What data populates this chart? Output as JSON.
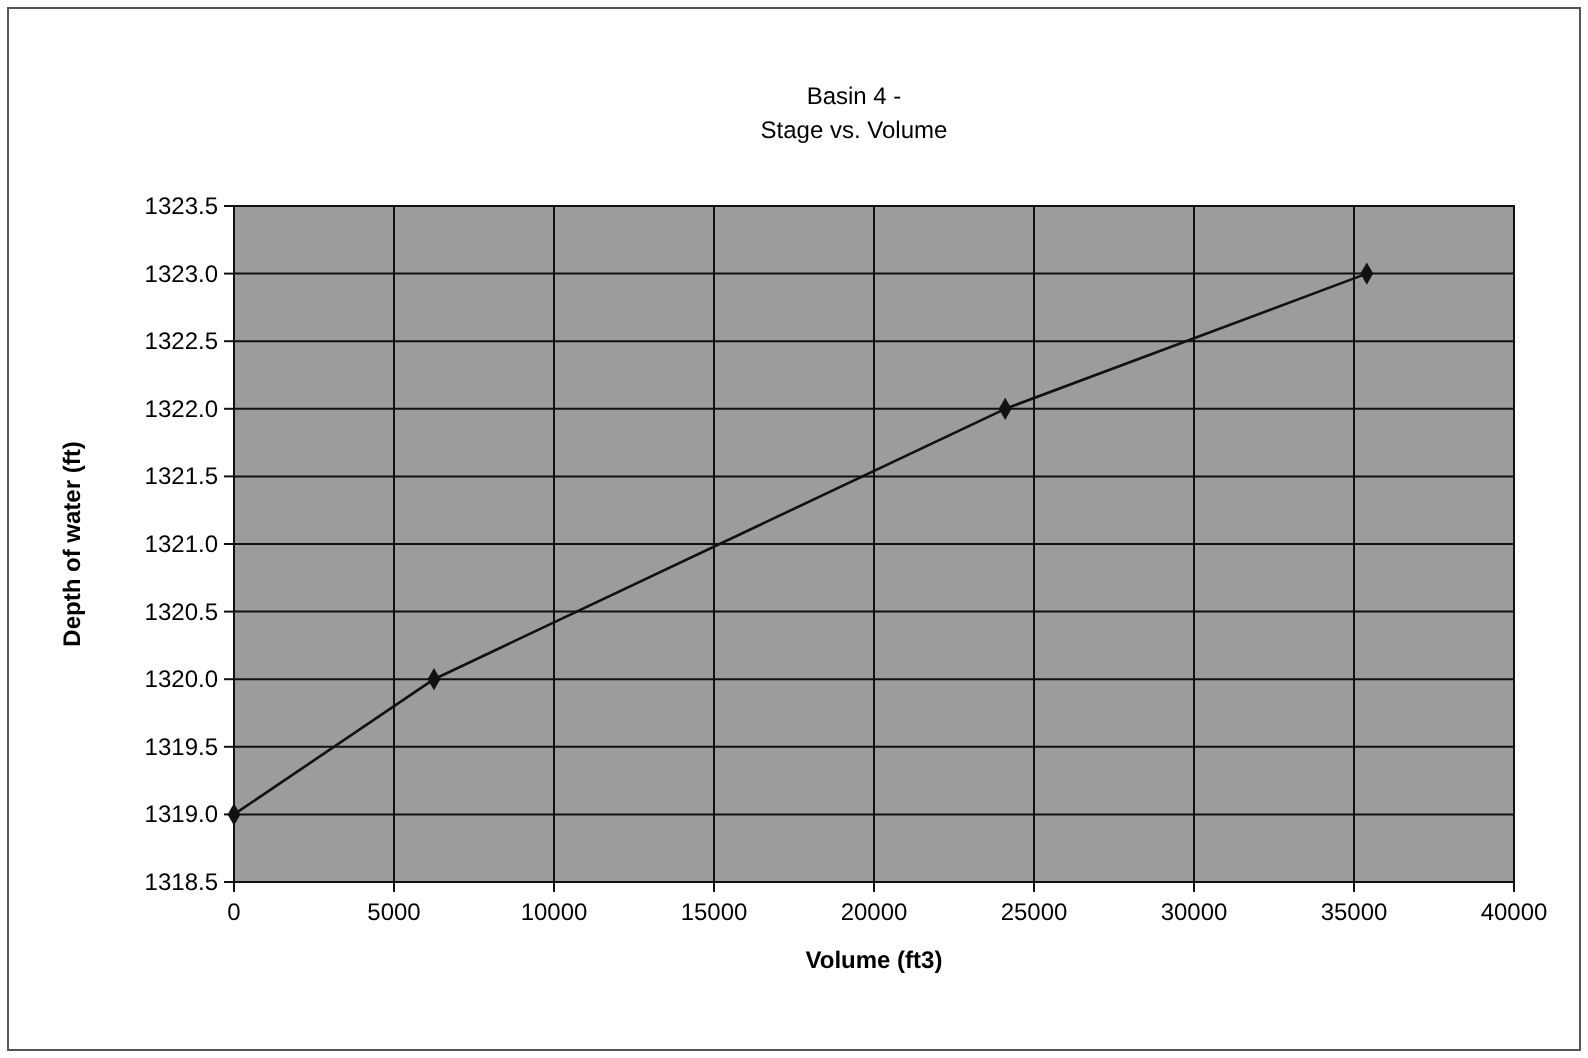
{
  "chart_data": {
    "type": "line",
    "title": "Basin 4 -",
    "subtitle": "Stage vs. Volume",
    "xlabel": "Volume (ft3)",
    "ylabel": "Depth of water (ft)",
    "x": [
      0,
      6250,
      24100,
      35400
    ],
    "series": [
      {
        "color": "#111111",
        "values": [
          1319,
          1320,
          1322,
          1323
        ]
      }
    ],
    "xlim": [
      0,
      40000
    ],
    "xticks": [
      0,
      5000,
      10000,
      15000,
      20000,
      25000,
      30000,
      35000,
      40000
    ],
    "ylim": [
      1318.5,
      1323.5
    ],
    "yticks": [
      {
        "value": 1318.5,
        "label": "1318.5"
      },
      {
        "value": 1319,
        "label": "1319.0"
      },
      {
        "value": 1319.5,
        "label": "1319.5"
      },
      {
        "value": 1320,
        "label": "1320.0"
      },
      {
        "value": 1320.5,
        "label": "1320.5"
      },
      {
        "value": 1321,
        "label": "1321.0"
      },
      {
        "value": 1321.5,
        "label": "1321.5"
      },
      {
        "value": 1322,
        "label": "1322.0"
      },
      {
        "value": 1322.5,
        "label": "1322.5"
      },
      {
        "value": 1323,
        "label": "1323.0"
      },
      {
        "value": 1323.5,
        "label": "1323.5"
      }
    ],
    "grid": true,
    "marker": "diamond",
    "line_style": "solid"
  }
}
